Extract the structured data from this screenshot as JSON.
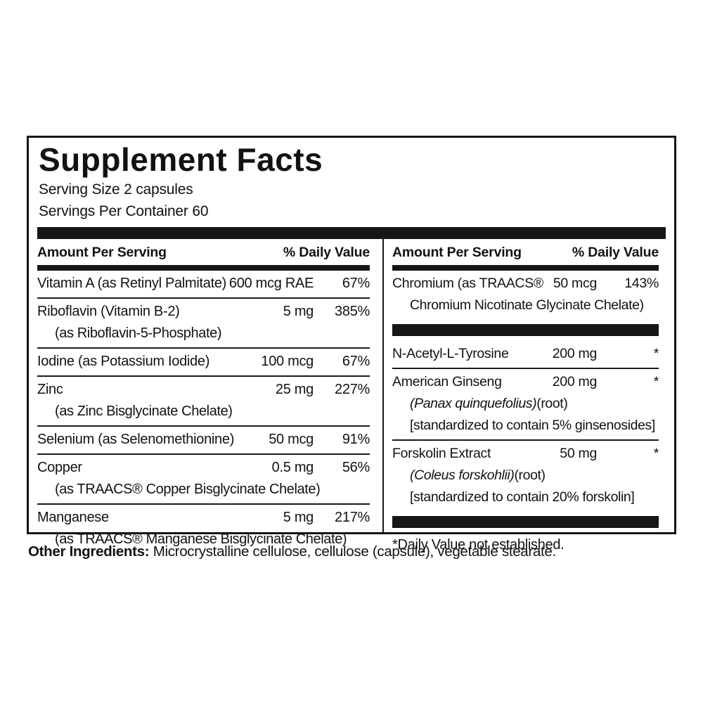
{
  "panel": {
    "title": "Supplement Facts",
    "serving_size": "Serving Size 2 capsules",
    "servings_per_container": "Servings Per Container 60",
    "left": {
      "header": {
        "amount": "Amount Per Serving",
        "dv": "% Daily Value"
      },
      "rows": [
        {
          "name": "Vitamin A (as Retinyl Palmitate)",
          "amount": "600 mcg RAE",
          "dv": "67%"
        },
        {
          "name": "Riboflavin (Vitamin B-2)",
          "amount": "5 mg",
          "dv": "385%",
          "sub": "(as Riboflavin-5-Phosphate)"
        },
        {
          "name": "Iodine (as Potassium Iodide)",
          "amount": "100 mcg",
          "dv": "67%"
        },
        {
          "name": "Zinc",
          "amount": "25 mg",
          "dv": "227%",
          "sub": "(as Zinc Bisglycinate Chelate)"
        },
        {
          "name": "Selenium (as Selenomethionine)",
          "amount": "50 mcg",
          "dv": "91%"
        },
        {
          "name": "Copper",
          "amount": "0.5 mg",
          "dv": "56%",
          "sub": "(as TRAACS® Copper Bisglycinate Chelate)"
        },
        {
          "name": "Manganese",
          "amount": "5 mg",
          "dv": "217%",
          "sub": "(as TRAACS® Manganese Bisglycinate Chelate)"
        }
      ]
    },
    "right": {
      "header": {
        "amount": "Amount Per Serving",
        "dv": "% Daily Value"
      },
      "rows": [
        {
          "name": "Chromium (as TRAACS®",
          "amount": "50 mcg",
          "dv": "143%",
          "sub": "Chromium Nicotinate Glycinate Chelate)"
        },
        {
          "name": "N-Acetyl-L-Tyrosine",
          "amount": "200 mg",
          "dv": "*"
        },
        {
          "name": "American Ginseng",
          "amount": "200 mg",
          "dv": "*",
          "botanical": "(Panax quinquefolius)",
          "plant_part": "(root)",
          "standardized": "[standardized to contain 5% ginsenosides]"
        },
        {
          "name": "Forskolin Extract",
          "amount": "50 mg",
          "dv": "*",
          "botanical": "(Coleus forskohlii)",
          "plant_part": "(root)",
          "standardized": "[standardized to contain 20% forskolin]"
        }
      ],
      "footnote": "*Daily Value not established."
    },
    "other_ingredients": {
      "label": "Other Ingredients:",
      "text": " Microcrystalline cellulose, cellulose (capsule), vegetable stearate."
    }
  }
}
